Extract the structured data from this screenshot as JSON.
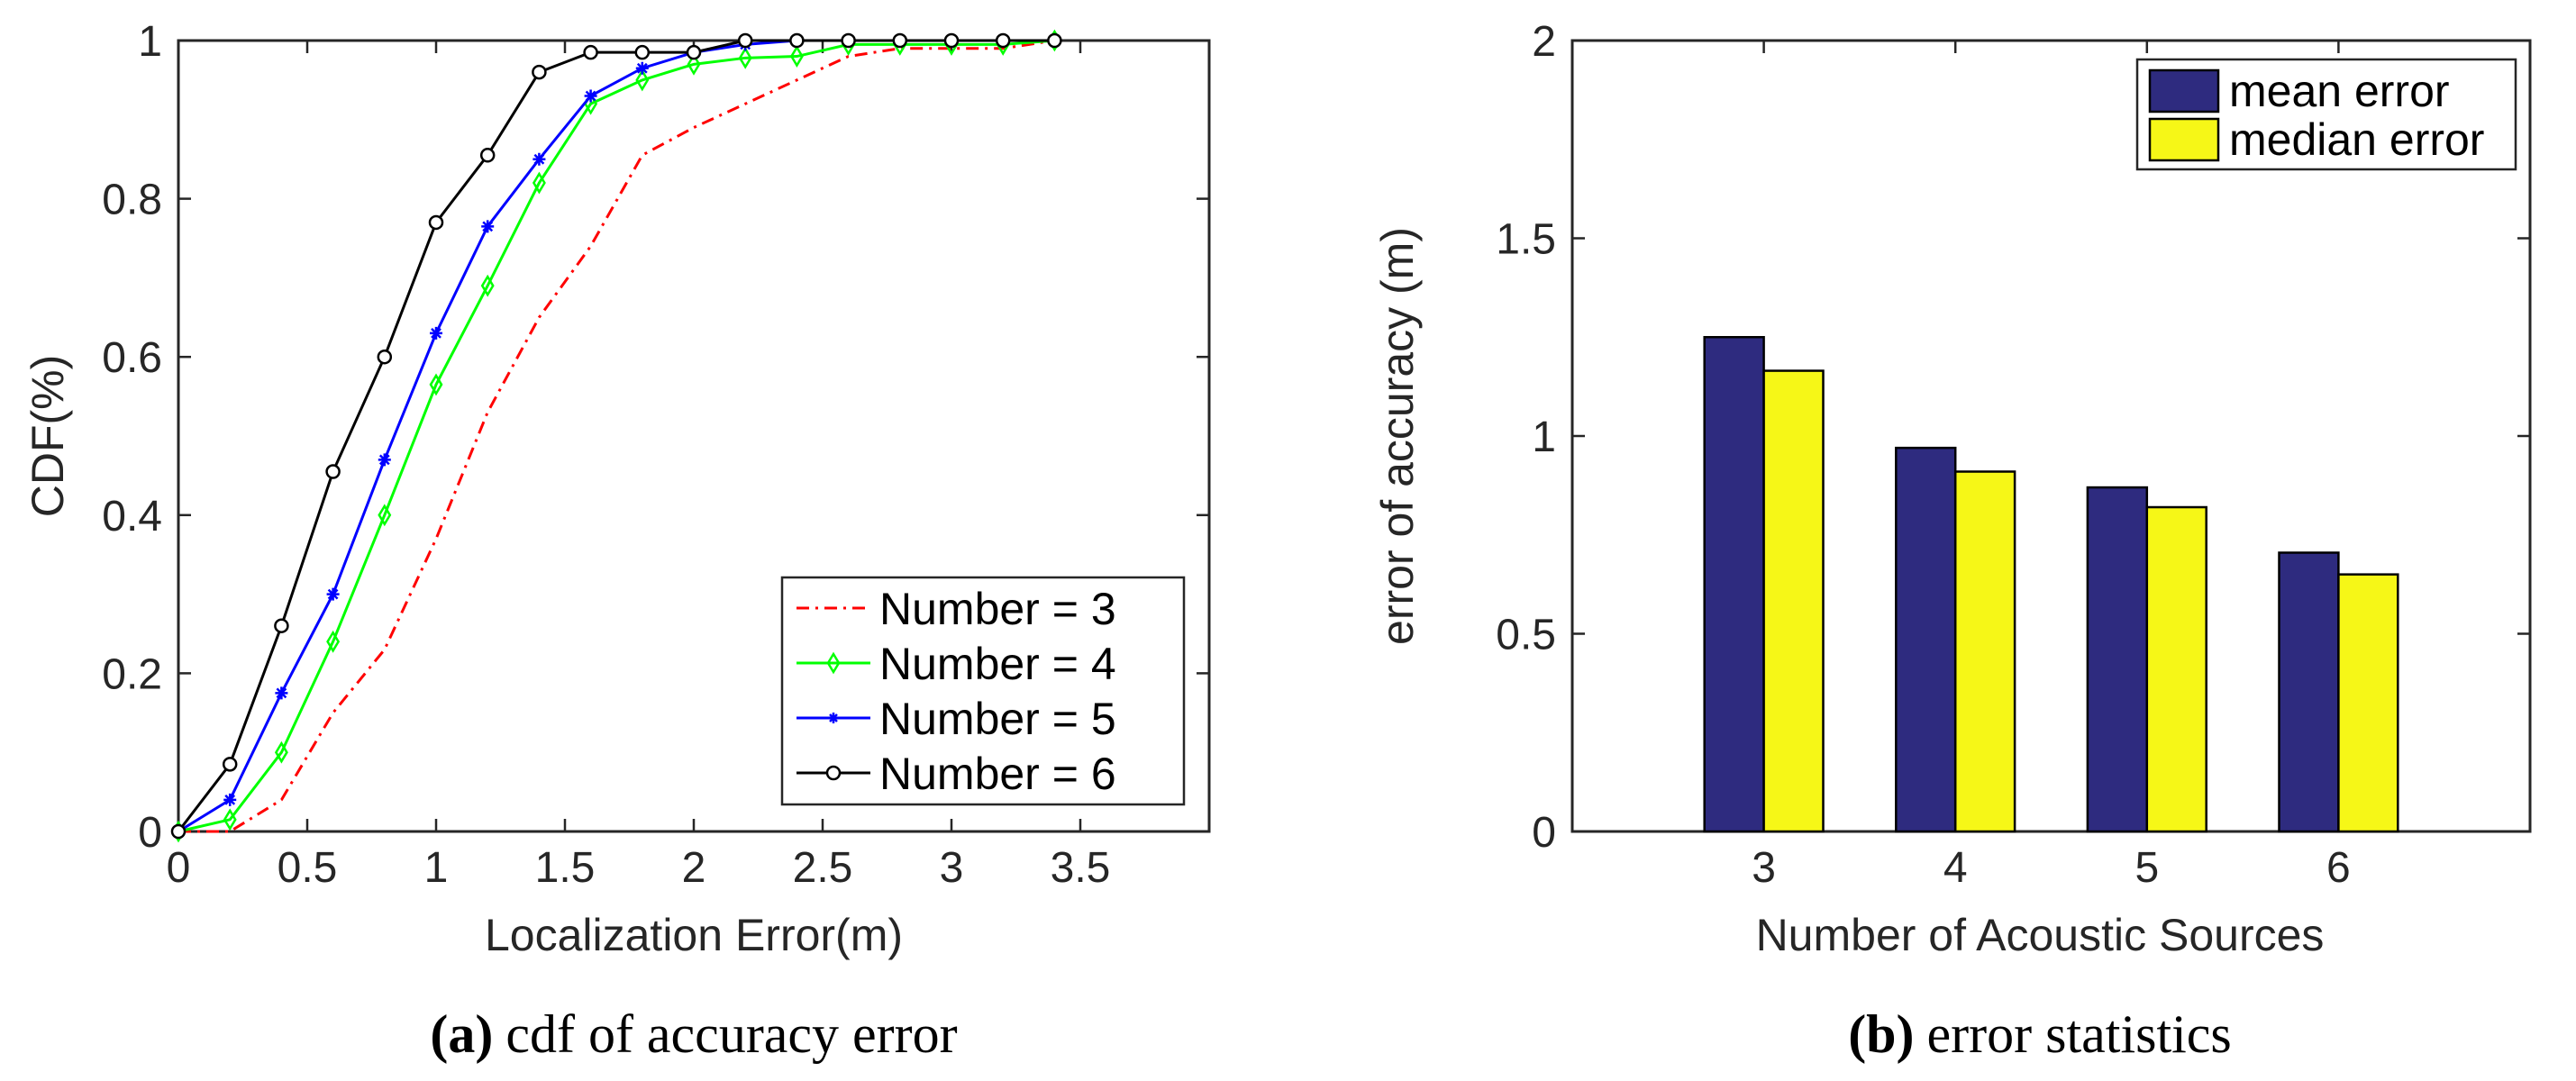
{
  "chart_data": [
    {
      "type": "line",
      "ylabel": "CDF(%)",
      "xlabel": "Localization Error(m)",
      "xlim": [
        0,
        4
      ],
      "ylim": [
        0,
        1
      ],
      "xticks": [
        0,
        0.5,
        1,
        1.5,
        2,
        2.5,
        3,
        3.5
      ],
      "xtick_labels": [
        "0",
        "0.5",
        "1",
        "1.5",
        "2",
        "2.5",
        "3",
        "3.5"
      ],
      "yticks": [
        0,
        0.2,
        0.4,
        0.6,
        0.8,
        1
      ],
      "ytick_labels": [
        "0",
        "0.2",
        "0.4",
        "0.6",
        "0.8",
        "1"
      ],
      "legend_position": "bottom-right",
      "caption": {
        "tag": "(a)",
        "text": "cdf of accuracy error"
      },
      "series": [
        {
          "name": "Number = 3",
          "color": "#ff0000",
          "dash": "dashdot",
          "marker": "none",
          "x": [
            0,
            0.2,
            0.4,
            0.6,
            0.8,
            1.0,
            1.2,
            1.4,
            1.6,
            1.8,
            2.0,
            2.2,
            2.4,
            2.6,
            2.8,
            3.0,
            3.2,
            3.4
          ],
          "y": [
            0,
            0,
            0.04,
            0.15,
            0.23,
            0.37,
            0.53,
            0.65,
            0.74,
            0.855,
            0.89,
            0.92,
            0.95,
            0.98,
            0.99,
            0.99,
            0.99,
            1.0
          ]
        },
        {
          "name": "Number = 4",
          "color": "#00ff00",
          "dash": "solid",
          "marker": "diamond",
          "x": [
            0,
            0.2,
            0.4,
            0.6,
            0.8,
            1.0,
            1.2,
            1.4,
            1.6,
            1.8,
            2.0,
            2.2,
            2.4,
            2.6,
            2.8,
            3.0,
            3.2,
            3.4
          ],
          "y": [
            0,
            0.015,
            0.1,
            0.24,
            0.4,
            0.565,
            0.69,
            0.82,
            0.92,
            0.95,
            0.97,
            0.978,
            0.98,
            0.995,
            0.995,
            0.995,
            0.995,
            1.0
          ]
        },
        {
          "name": "Number = 5",
          "color": "#0000ff",
          "dash": "solid",
          "marker": "asterisk",
          "x": [
            0,
            0.2,
            0.4,
            0.6,
            0.8,
            1.0,
            1.2,
            1.4,
            1.6,
            1.8,
            2.0,
            2.2,
            2.4,
            2.6,
            2.8,
            3.0,
            3.2,
            3.4
          ],
          "y": [
            0,
            0.04,
            0.175,
            0.3,
            0.47,
            0.63,
            0.765,
            0.85,
            0.93,
            0.965,
            0.985,
            0.995,
            1.0,
            1.0,
            1.0,
            1.0,
            1.0,
            1.0
          ]
        },
        {
          "name": "Number = 6",
          "color": "#000000",
          "dash": "solid",
          "marker": "circle",
          "x": [
            0,
            0.2,
            0.4,
            0.6,
            0.8,
            1.0,
            1.2,
            1.4,
            1.6,
            1.8,
            2.0,
            2.2,
            2.4,
            2.6,
            2.8,
            3.0,
            3.2,
            3.4
          ],
          "y": [
            0,
            0.085,
            0.26,
            0.455,
            0.6,
            0.77,
            0.855,
            0.96,
            0.985,
            0.985,
            0.985,
            1.0,
            1.0,
            1.0,
            1.0,
            1.0,
            1.0,
            1.0
          ]
        }
      ]
    },
    {
      "type": "bar",
      "ylabel": "error of accuracy (m)",
      "xlabel": "Number of Acoustic Sources",
      "categories": [
        "3",
        "4",
        "5",
        "6"
      ],
      "ylim": [
        0,
        2
      ],
      "yticks": [
        0,
        0.5,
        1,
        1.5,
        2
      ],
      "ytick_labels": [
        "0",
        "0.5",
        "1",
        "1.5",
        "2"
      ],
      "legend_position": "top-right",
      "caption": {
        "tag": "(b)",
        "text": "error statistics"
      },
      "series": [
        {
          "name": "mean error",
          "color": "#2e2b7f",
          "values": [
            1.25,
            0.97,
            0.87,
            0.705
          ]
        },
        {
          "name": "median error",
          "color": "#f6f717",
          "values": [
            1.165,
            0.91,
            0.82,
            0.65
          ]
        }
      ]
    }
  ]
}
